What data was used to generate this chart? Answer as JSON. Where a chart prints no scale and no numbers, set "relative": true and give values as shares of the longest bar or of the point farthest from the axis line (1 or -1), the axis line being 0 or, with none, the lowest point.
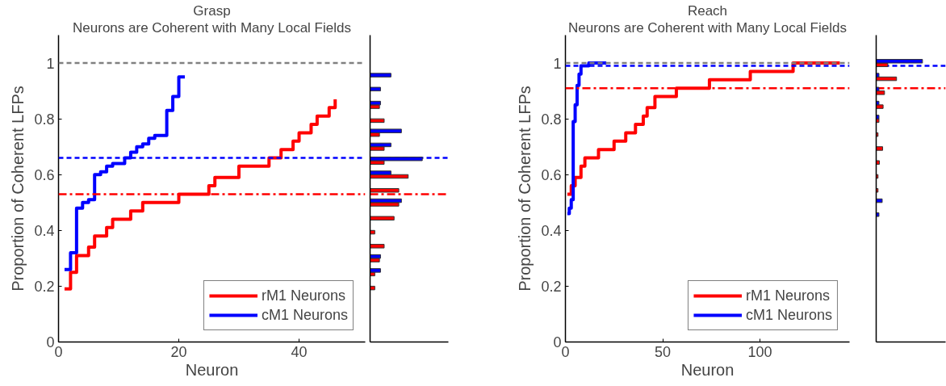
{
  "chart_data": [
    {
      "type": "step",
      "title": "Grasp",
      "subtitle": "Neurons are Coherent with Many Local Fields",
      "xlabel": "Neuron",
      "ylabel": "Proportion of Coherent LFPs",
      "xlim": [
        0,
        51
      ],
      "xticks": [
        0,
        20,
        40
      ],
      "ylim": [
        0,
        1.1
      ],
      "yticks": [
        0,
        0.2,
        0.4,
        0.6,
        0.8,
        1
      ],
      "grid": false,
      "legend": "bottom right",
      "line_style": "solid",
      "series": [
        {
          "name": "rM1 Neurons",
          "color": "#ff0000",
          "x": [
            1,
            2,
            3,
            5,
            6,
            8,
            9,
            12,
            14,
            20,
            25,
            26,
            30,
            35,
            37,
            39,
            40,
            42,
            43,
            45,
            46
          ],
          "values": [
            0.19,
            0.25,
            0.31,
            0.34,
            0.38,
            0.41,
            0.44,
            0.47,
            0.5,
            0.53,
            0.56,
            0.59,
            0.63,
            0.66,
            0.69,
            0.72,
            0.75,
            0.78,
            0.81,
            0.84,
            0.87
          ]
        },
        {
          "name": "cM1 Neurons",
          "color": "#0000ff",
          "x": [
            1,
            2,
            3,
            4,
            5,
            6,
            7,
            8,
            9,
            11,
            12,
            13,
            14,
            15,
            16,
            18,
            19,
            20,
            21
          ],
          "values": [
            0.26,
            0.32,
            0.48,
            0.5,
            0.51,
            0.6,
            0.61,
            0.63,
            0.64,
            0.66,
            0.68,
            0.7,
            0.71,
            0.73,
            0.74,
            0.83,
            0.88,
            0.95,
            0.95
          ]
        }
      ],
      "ref_lines": [
        {
          "axis": "y",
          "value": 1,
          "color": "#808080",
          "line_style": "dashed"
        },
        {
          "axis": "y",
          "value": 0.66,
          "color": "#0000ff",
          "line_style": "dashed"
        },
        {
          "axis": "y",
          "value": 0.53,
          "color": "#ff0000",
          "line_style": "dashdot"
        }
      ]
    },
    {
      "type": "bar",
      "orientation": "horizontal",
      "relative": true,
      "ylim": [
        0,
        1.1
      ],
      "tick_labels": false,
      "grid": false,
      "series": [
        {
          "color": "#ff0000",
          "x": [
            0.2,
            0.25,
            0.3,
            0.35,
            0.4,
            0.45,
            0.5,
            0.55,
            0.6,
            0.65,
            0.7,
            0.75,
            0.8,
            0.85
          ],
          "values": [
            0.09,
            0.09,
            0.18,
            0.27,
            0.09,
            0.46,
            0.55,
            0.55,
            0.73,
            0.27,
            0.27,
            0.18,
            0.27,
            0.18
          ]
        },
        {
          "color": "#0000ff",
          "x": [
            0.25,
            0.3,
            0.5,
            0.6,
            0.65,
            0.7,
            0.75,
            0.85,
            0.9,
            0.95
          ],
          "values": [
            0.2,
            0.2,
            0.6,
            0.4,
            1,
            0.4,
            0.6,
            0.2,
            0.2,
            0.4
          ]
        }
      ],
      "ref_lines": [
        {
          "axis": "y",
          "value": 0.66,
          "color": "#0000ff",
          "line_style": "dashed"
        },
        {
          "axis": "y",
          "value": 0.53,
          "color": "#ff0000",
          "line_style": "dashdot"
        }
      ]
    },
    {
      "type": "step",
      "title": "Reach",
      "subtitle": "Neurons are Coherent with Many Local Fields",
      "xlabel": "Neuron",
      "ylabel": "Proportion of Coherent LFPs",
      "xlim": [
        0,
        146
      ],
      "xticks": [
        0,
        50,
        100
      ],
      "ylim": [
        0,
        1.1
      ],
      "yticks": [
        0,
        0.2,
        0.4,
        0.6,
        0.8,
        1
      ],
      "grid": false,
      "legend": "bottom right",
      "line_style": "solid",
      "series": [
        {
          "name": "rM1 Neurons",
          "color": "#ff0000",
          "x": [
            1,
            3,
            5,
            8,
            10,
            17,
            25,
            31,
            36,
            40,
            42,
            46,
            57,
            74,
            95,
            117,
            141
          ],
          "values": [
            0.53,
            0.56,
            0.59,
            0.63,
            0.66,
            0.69,
            0.72,
            0.75,
            0.78,
            0.81,
            0.84,
            0.88,
            0.91,
            0.94,
            0.97,
            1.0,
            1.0
          ]
        },
        {
          "name": "cM1 Neurons",
          "color": "#0000ff",
          "x": [
            1,
            2,
            3,
            4,
            5,
            6,
            7,
            8,
            10,
            12,
            21
          ],
          "values": [
            0.46,
            0.48,
            0.51,
            0.79,
            0.85,
            0.92,
            0.96,
            0.99,
            0.99,
            1.0,
            1.0
          ]
        }
      ],
      "ref_lines": [
        {
          "axis": "y",
          "value": 1,
          "color": "#808080",
          "line_style": "dashed"
        },
        {
          "axis": "y",
          "value": 0.99,
          "color": "#0000ff",
          "line_style": "dashed"
        },
        {
          "axis": "y",
          "value": 0.91,
          "color": "#ff0000",
          "line_style": "dashdot"
        }
      ]
    },
    {
      "type": "bar",
      "orientation": "horizontal",
      "relative": true,
      "ylim": [
        0,
        1.1
      ],
      "tick_labels": false,
      "grid": false,
      "series": [
        {
          "color": "#ff0000",
          "x": [
            0.55,
            0.6,
            0.65,
            0.7,
            0.75,
            0.8,
            0.85,
            0.9,
            0.95,
            1.0
          ],
          "values": [
            0.04,
            0.04,
            0.07,
            0.14,
            0.04,
            0.06,
            0.15,
            0.18,
            0.44,
            0.25
          ]
        },
        {
          "color": "#0000ff",
          "x": [
            0.45,
            0.5,
            0.8,
            0.85,
            0.9,
            0.95,
            1.0
          ],
          "values": [
            0.06,
            0.13,
            0.06,
            0.06,
            0.06,
            0.06,
            1
          ]
        }
      ],
      "ref_lines": [
        {
          "axis": "y",
          "value": 0.99,
          "color": "#0000ff",
          "line_style": "dashed"
        },
        {
          "axis": "y",
          "value": 0.91,
          "color": "#ff0000",
          "line_style": "dashdot"
        }
      ]
    }
  ]
}
